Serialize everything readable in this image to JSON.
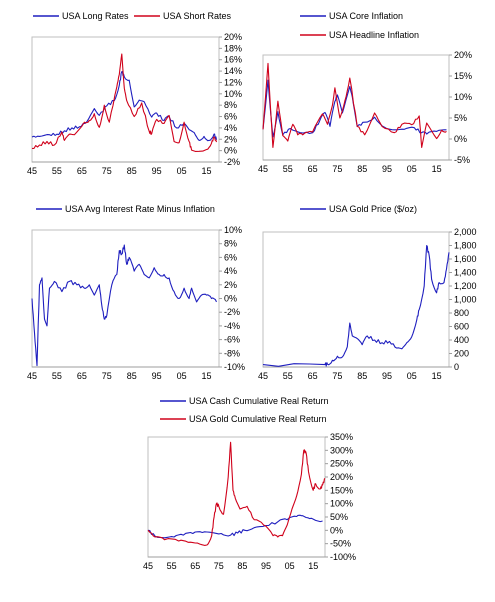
{
  "chart_data": [
    {
      "type": "line",
      "title": "",
      "xticks": [
        "45",
        "55",
        "65",
        "75",
        "85",
        "95",
        "05",
        "15"
      ],
      "yticks": [
        "-2%",
        "0%",
        "2%",
        "4%",
        "6%",
        "8%",
        "10%",
        "12%",
        "14%",
        "16%",
        "18%",
        "20%"
      ],
      "ylim": [
        -2,
        20
      ],
      "xlim": [
        1945,
        2020
      ],
      "legend_position": "top",
      "grid": false,
      "series": [
        {
          "name": "USA Long Rates",
          "color": "#1f1fbf",
          "x": [
            1945,
            1948,
            1952,
            1955,
            1958,
            1961,
            1964,
            1967,
            1970,
            1972,
            1975,
            1978,
            1980,
            1981,
            1982,
            1984,
            1986,
            1988,
            1990,
            1993,
            1995,
            1998,
            2000,
            2003,
            2006,
            2008,
            2010,
            2012,
            2014,
            2016,
            2018,
            2019
          ],
          "y": [
            2.4,
            2.5,
            2.8,
            2.9,
            3.5,
            4.0,
            4.2,
            5.1,
            7.4,
            6.2,
            7.9,
            8.8,
            11.5,
            13.9,
            13.0,
            12.4,
            7.7,
            8.9,
            8.6,
            5.9,
            6.6,
            5.3,
            6.0,
            4.0,
            4.8,
            3.7,
            3.2,
            1.8,
            2.5,
            1.8,
            2.9,
            1.9
          ]
        },
        {
          "name": "USA Short Rates",
          "color": "#d0021b",
          "x": [
            1945,
            1948,
            1951,
            1954,
            1957,
            1958,
            1960,
            1962,
            1966,
            1968,
            1970,
            1972,
            1974,
            1976,
            1979,
            1980,
            1981,
            1982,
            1983,
            1986,
            1989,
            1992,
            1993,
            1995,
            1998,
            2000,
            2002,
            2004,
            2006,
            2008,
            2009,
            2015,
            2017,
            2018,
            2019
          ],
          "y": [
            0.4,
            1.0,
            1.6,
            1.0,
            3.3,
            1.8,
            2.9,
            2.8,
            5.0,
            5.3,
            6.5,
            4.1,
            8.0,
            5.0,
            11.2,
            13.4,
            17.0,
            11.0,
            8.8,
            6.0,
            8.4,
            3.4,
            3.0,
            5.5,
            4.8,
            6.2,
            1.6,
            1.4,
            5.0,
            1.6,
            0.1,
            0.2,
            1.3,
            2.4,
            1.5
          ]
        }
      ]
    },
    {
      "type": "line",
      "title": "",
      "xticks": [
        "45",
        "55",
        "65",
        "75",
        "85",
        "95",
        "05",
        "15"
      ],
      "yticks": [
        "-5%",
        "0%",
        "5%",
        "10%",
        "15%",
        "20%"
      ],
      "ylim": [
        -5,
        20
      ],
      "xlim": [
        1945,
        2020
      ],
      "legend_position": "top",
      "grid": false,
      "series": [
        {
          "name": "USA Core Inflation",
          "color": "#1f1fbf",
          "x": [
            1945,
            1947,
            1949,
            1951,
            1953,
            1956,
            1960,
            1965,
            1968,
            1970,
            1972,
            1974,
            1975,
            1977,
            1980,
            1981,
            1983,
            1986,
            1990,
            1994,
            1998,
            2002,
            2006,
            2009,
            2011,
            2015,
            2019
          ],
          "y": [
            2.3,
            14.0,
            0.5,
            6.5,
            1.0,
            2.5,
            1.5,
            1.5,
            4.5,
            6.3,
            3.0,
            9.0,
            10.5,
            6.2,
            12.5,
            10.0,
            3.0,
            4.0,
            5.2,
            2.8,
            2.2,
            2.3,
            2.7,
            1.5,
            1.2,
            1.8,
            2.2
          ]
        },
        {
          "name": "USA Headline Inflation",
          "color": "#d0021b",
          "x": [
            1945,
            1947,
            1949,
            1951,
            1953,
            1955,
            1957,
            1959,
            1961,
            1965,
            1969,
            1971,
            1973,
            1974,
            1976,
            1978,
            1980,
            1983,
            1986,
            1990,
            1993,
            1998,
            2001,
            2005,
            2008,
            2009,
            2011,
            2015,
            2017,
            2019
          ],
          "y": [
            2.3,
            18.0,
            -2.0,
            9.0,
            0.8,
            -0.5,
            3.5,
            1.0,
            1.0,
            1.7,
            6.0,
            3.5,
            8.0,
            12.2,
            5.0,
            9.0,
            14.5,
            3.0,
            1.0,
            6.2,
            3.0,
            1.5,
            3.5,
            3.4,
            5.5,
            -2.0,
            3.8,
            0.1,
            2.1,
            1.8
          ]
        }
      ]
    },
    {
      "type": "line",
      "title": "",
      "xticks": [
        "45",
        "55",
        "65",
        "75",
        "85",
        "95",
        "05",
        "15"
      ],
      "yticks": [
        "-10%",
        "-8%",
        "-6%",
        "-4%",
        "-2%",
        "0%",
        "2%",
        "4%",
        "6%",
        "8%",
        "10%"
      ],
      "ylim": [
        -10,
        10
      ],
      "xlim": [
        1945,
        2020
      ],
      "legend_position": "top",
      "grid": false,
      "series": [
        {
          "name": "USA Avg Interest Rate Minus Inflation",
          "color": "#1f1fbf",
          "x": [
            1945,
            1946,
            1947,
            1948,
            1949,
            1950,
            1951,
            1952,
            1954,
            1957,
            1960,
            1963,
            1966,
            1968,
            1970,
            1972,
            1973,
            1974,
            1975,
            1977,
            1979,
            1980,
            1981,
            1982,
            1983,
            1984,
            1986,
            1988,
            1990,
            1992,
            1994,
            1996,
            1998,
            2000,
            2002,
            2004,
            2006,
            2008,
            2009,
            2011,
            2013,
            2015,
            2017,
            2019
          ],
          "y": [
            0,
            -5,
            -9.8,
            2.0,
            3.0,
            -3.0,
            -4.0,
            1.5,
            2.5,
            1.0,
            2.5,
            2.0,
            1.5,
            2.0,
            0.5,
            2.0,
            -1.0,
            -3.0,
            -2.5,
            2.0,
            3.5,
            7.0,
            6.5,
            7.8,
            5.0,
            6.0,
            4.0,
            5.0,
            3.5,
            3.0,
            4.5,
            3.5,
            3.5,
            3.0,
            1.0,
            0.0,
            1.5,
            0.0,
            1.5,
            -0.5,
            0.5,
            0.5,
            0.0,
            -0.5
          ]
        }
      ]
    },
    {
      "type": "line",
      "title": "",
      "xticks": [
        "45",
        "55",
        "65",
        "75",
        "85",
        "95",
        "05",
        "15"
      ],
      "yticks": [
        "0",
        "200",
        "400",
        "600",
        "800",
        "1,000",
        "1,200",
        "1,400",
        "1,600",
        "1,800",
        "2,000"
      ],
      "ylim": [
        0,
        2000
      ],
      "xlim": [
        1945,
        2020
      ],
      "legend_position": "top",
      "grid": false,
      "series": [
        {
          "name": "USA Gold Price ($/oz)",
          "color": "#1f1fbf",
          "x": [
            1945,
            1970,
            1971,
            1973,
            1975,
            1977,
            1979,
            1980,
            1981,
            1983,
            1985,
            1987,
            1990,
            1993,
            1996,
            1999,
            2001,
            2003,
            2005,
            2007,
            2008,
            2010,
            2011,
            2012,
            2013,
            2015,
            2016,
            2018,
            2019,
            2020
          ],
          "y": [
            35,
            35,
            42,
            100,
            160,
            150,
            300,
            650,
            460,
            420,
            330,
            460,
            400,
            360,
            380,
            280,
            270,
            360,
            450,
            700,
            850,
            1200,
            1800,
            1650,
            1300,
            1100,
            1250,
            1250,
            1450,
            1700
          ]
        }
      ]
    },
    {
      "type": "line",
      "title": "",
      "xticks": [
        "45",
        "55",
        "65",
        "75",
        "85",
        "95",
        "05",
        "15"
      ],
      "yticks": [
        "-100%",
        "-50%",
        "0%",
        "50%",
        "100%",
        "150%",
        "200%",
        "250%",
        "300%",
        "350%"
      ],
      "ylim": [
        -100,
        350
      ],
      "xlim": [
        1945,
        2020
      ],
      "legend_position": "top",
      "grid": false,
      "series": [
        {
          "name": "USA Cash Cumulative Real Return",
          "color": "#1f1fbf",
          "x": [
            1945,
            1948,
            1952,
            1956,
            1960,
            1964,
            1968,
            1972,
            1976,
            1980,
            1983,
            1986,
            1990,
            1995,
            2000,
            2004,
            2008,
            2010,
            2012,
            2015,
            2019
          ],
          "y": [
            0,
            -22,
            -28,
            -25,
            -18,
            -12,
            -8,
            -8,
            -12,
            -18,
            -10,
            0,
            10,
            18,
            32,
            40,
            52,
            55,
            48,
            42,
            35
          ]
        },
        {
          "name": "USA Gold Cumulative Real Return",
          "color": "#d0021b",
          "x": [
            1945,
            1948,
            1952,
            1958,
            1962,
            1966,
            1970,
            1972,
            1973,
            1974,
            1975,
            1977,
            1979,
            1980,
            1981,
            1982,
            1984,
            1987,
            1990,
            1994,
            1998,
            2000,
            2002,
            2004,
            2006,
            2008,
            2010,
            2011,
            2012,
            2013,
            2015,
            2016,
            2018,
            2019,
            2020
          ],
          "y": [
            0,
            -25,
            -35,
            -40,
            -45,
            -48,
            -55,
            -20,
            50,
            100,
            90,
            60,
            200,
            330,
            150,
            120,
            80,
            90,
            40,
            20,
            -20,
            -25,
            -20,
            20,
            80,
            130,
            210,
            300,
            290,
            220,
            150,
            175,
            155,
            170,
            195
          ]
        }
      ]
    }
  ]
}
